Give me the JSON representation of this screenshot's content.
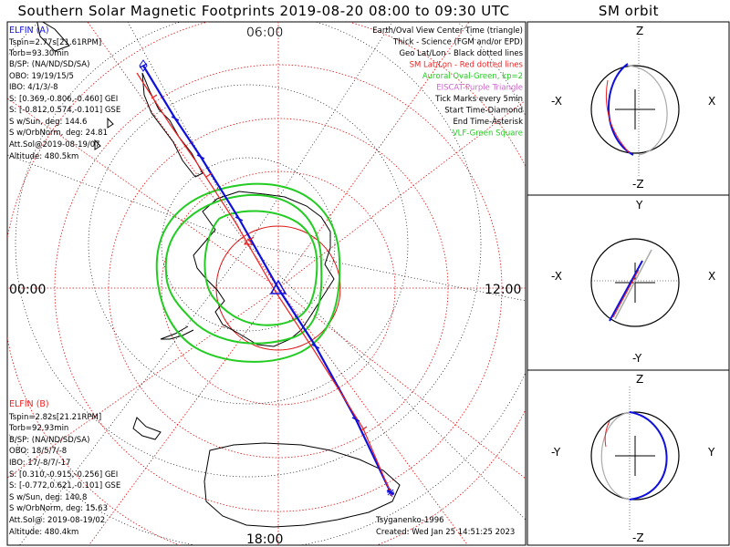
{
  "title": "Southern Solar Magnetic Footprints 2019-08-20 08:00 to 09:30 UTC",
  "orbit_title": "SM orbit",
  "colors": {
    "probe_a": "#1010dd",
    "probe_b": "#ee2222",
    "auroral_oval": "#22cc22",
    "sm_grid": "#dd1111",
    "geo_grid": "#000000",
    "gray_orbit": "#aaaaaa"
  },
  "map": {
    "mlt_labels": {
      "top": "06:00",
      "left": "00:00",
      "right": "12:00",
      "bottom": "18:00"
    },
    "legend": [
      {
        "text": "Earth/Oval View Center Time (triangle)",
        "color": "#000000"
      },
      {
        "text": "Thick - Science (FGM and/or EPD)",
        "color": "#000000"
      },
      {
        "text": "Geo Lat/Lon - Black dotted lines",
        "color": "#000000"
      },
      {
        "text": "SM Lat/Lon - Red dotted lines",
        "color": "#ee2222"
      },
      {
        "text": "Auroral Oval-Green, kp=2",
        "color": "#22cc22"
      },
      {
        "text": "EISCAT-Purple Triangle",
        "color": "#cc66cc"
      },
      {
        "text": "Tick Marks every 5min",
        "color": "#000000"
      },
      {
        "text": "Start Time-Diamond",
        "color": "#000000"
      },
      {
        "text": "End Time-Asterisk",
        "color": "#000000"
      },
      {
        "text": "VLF-Green Square",
        "color": "#22cc22"
      }
    ],
    "probe_a": {
      "name": "ELFIN (A)",
      "lines": [
        "Tspin=2.77s[21.61RPM]",
        "Torb=93.30min",
        "B/SP: (NA/ND/SD/SA)",
        "OBO: 19/19/15/5",
        "IBO: 4/1/3/-8",
        "S: [0.369,-0.806,-0.460] GEI",
        "S: [-0.812,0.574,-0.101] GSE",
        "S w/Sun, deg: 144.6",
        "S w/OrbNorm, deg: 24.81",
        "Att.Sol@2019-08-19/07",
        "Altitude: 480.5km"
      ]
    },
    "probe_b": {
      "name": "ELFIN (B)",
      "lines": [
        "Tspin=2.82s[21.21RPM]",
        "Torb=92.93min",
        "B/SP: (NA/ND/SD/SA)",
        "OBO: 18/5/7/-8",
        "IBO: 17/-8/7/-17",
        "S: [0.310,-0.915,-0.256] GEI",
        "S: [-0.772,0.621,-0.101] GSE",
        "S w/Sun, deg: 140.8",
        "S w/OrbNorm, deg: 15.63",
        "Att.Sol@: 2019-08-19/02",
        "Altitude: 480.4km"
      ]
    },
    "credit": "Tsyganenko-1996",
    "created": "Created: Wed Jan 25 14:51:25 2023"
  },
  "orbit_panels": [
    {
      "top": "Z",
      "bottom": "-Z",
      "left": "-X",
      "right": "X"
    },
    {
      "top": "Y",
      "bottom": "-Y",
      "left": "-X",
      "right": "X"
    },
    {
      "top": "Z",
      "bottom": "-Z",
      "left": "-Y",
      "right": "Y"
    }
  ]
}
